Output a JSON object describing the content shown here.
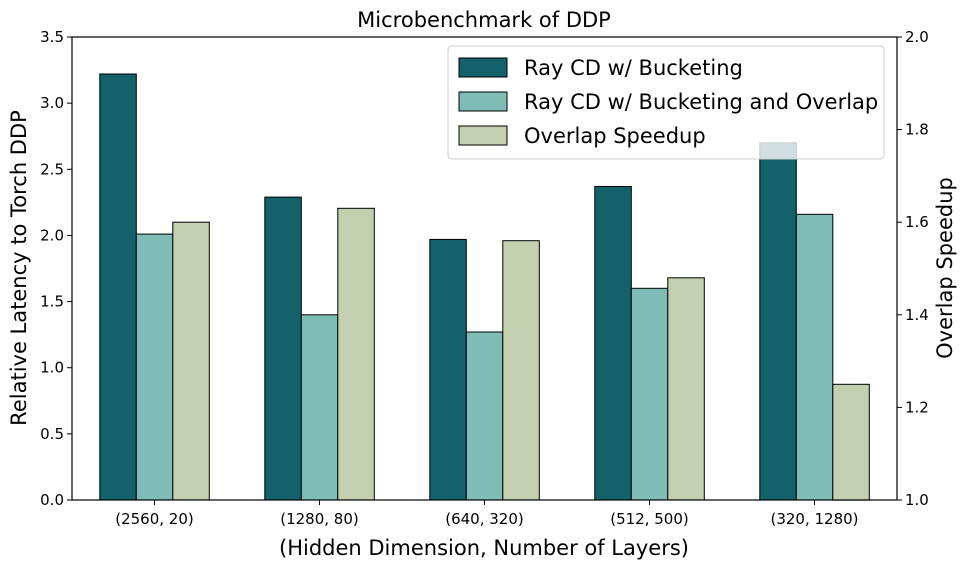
{
  "chart_data": {
    "type": "bar",
    "title": "Microbenchmark of DDP",
    "xlabel": "(Hidden Dimension, Number of Layers)",
    "ylabel": "Relative Latency to Torch DDP",
    "y2label": "Overlap Speedup",
    "categories": [
      "(2560, 20)",
      "(1280, 80)",
      "(640, 320)",
      "(512, 500)",
      "(320, 1280)"
    ],
    "ylim": [
      0,
      3.5
    ],
    "y2lim": [
      1.0,
      2.0
    ],
    "yticks": [
      "0.0",
      "0.5",
      "1.0",
      "1.5",
      "2.0",
      "2.5",
      "3.0",
      "3.5"
    ],
    "y2ticks": [
      "1.0",
      "1.2",
      "1.4",
      "1.6",
      "1.8",
      "2.0"
    ],
    "grid": false,
    "legend_position": "top-right",
    "series": [
      {
        "name": "Ray CD w/ Bucketing",
        "axis": "left",
        "color": "#13616a",
        "values": [
          3.22,
          2.29,
          1.97,
          2.37,
          2.7
        ]
      },
      {
        "name": "Ray CD w/ Bucketing and Overlap",
        "axis": "left",
        "color": "#7fbcb5",
        "values": [
          2.01,
          1.4,
          1.27,
          1.6,
          2.16
        ]
      },
      {
        "name": "Overlap Speedup",
        "axis": "right",
        "color": "#c3cfaf",
        "values": [
          1.6,
          1.63,
          1.56,
          1.48,
          1.25
        ]
      }
    ]
  }
}
